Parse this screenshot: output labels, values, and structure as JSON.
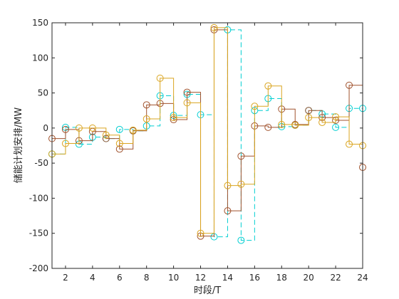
{
  "chart_data": {
    "type": "line",
    "step": true,
    "xlabel": "时段/T",
    "ylabel": "储能计划安排/MW",
    "xlim": [
      1,
      24
    ],
    "ylim": [
      -200,
      150
    ],
    "xticks": [
      2,
      4,
      6,
      8,
      10,
      12,
      14,
      16,
      18,
      20,
      22,
      24
    ],
    "yticks": [
      -200,
      -150,
      -100,
      -50,
      0,
      50,
      100,
      150
    ],
    "grid": false,
    "x": [
      1,
      2,
      3,
      4,
      5,
      6,
      7,
      8,
      9,
      10,
      11,
      12,
      13,
      14,
      15,
      16,
      17,
      18,
      19,
      20,
      21,
      22,
      23,
      24
    ],
    "series": [
      {
        "color": "#00CED1",
        "dash": true,
        "values": [
          -37,
          1,
          -23,
          -13,
          -15,
          -2,
          -4,
          3,
          46,
          18,
          48,
          19,
          -155,
          140,
          -160,
          25,
          42,
          2,
          4,
          25,
          20,
          1,
          28,
          28
        ]
      },
      {
        "color": "#A0522D",
        "dash": false,
        "values": [
          -15,
          -2,
          -18,
          -5,
          -15,
          -30,
          -4,
          33,
          35,
          12,
          51,
          -154,
          140,
          -118,
          -40,
          3,
          1,
          27,
          5,
          25,
          15,
          11,
          61,
          -56
        ]
      },
      {
        "color": "#DAA520",
        "dash": false,
        "values": [
          -37,
          -22,
          0,
          0,
          -10,
          -22,
          -3,
          13,
          71,
          15,
          36,
          -150,
          143,
          -82,
          -80,
          31,
          60,
          5,
          4,
          15,
          8,
          16,
          -23,
          -25
        ]
      }
    ]
  }
}
